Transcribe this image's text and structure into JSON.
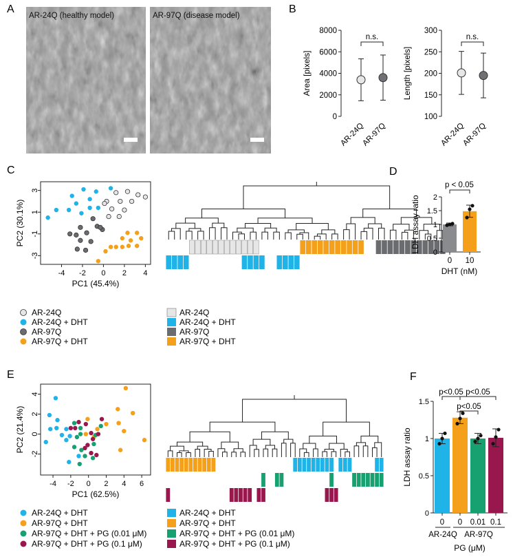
{
  "panels": {
    "A": {
      "letter": "A",
      "images": [
        {
          "label": "AR-24Q (healthy model)"
        },
        {
          "label": "AR-97Q (disease model)"
        }
      ]
    },
    "B": {
      "letter": "B",
      "chart_data": [
        {
          "type": "scatter",
          "title": "",
          "xlabel": "",
          "ylabel": "Area [pixels]",
          "categories": [
            "AR-24Q",
            "AR-97Q"
          ],
          "means": [
            3400,
            3600
          ],
          "errors": [
            1950,
            2100
          ],
          "ylim": [
            0,
            8000
          ],
          "yticks": [
            0,
            2000,
            4000,
            6000,
            8000
          ],
          "significance": "n.s."
        },
        {
          "type": "scatter",
          "title": "",
          "xlabel": "",
          "ylabel": "Length [pixels]",
          "categories": [
            "AR-24Q",
            "AR-97Q"
          ],
          "means": [
            201,
            195
          ],
          "errors": [
            50,
            52
          ],
          "ylim": [
            100,
            300
          ],
          "yticks": [
            100,
            150,
            200,
            250,
            300
          ],
          "significance": "n.s."
        }
      ]
    },
    "C": {
      "letter": "C",
      "pca": {
        "xlabel": "PC1 (45.4%)",
        "ylabel": "PC2 (30.1%)",
        "xticks": [
          -4,
          -2,
          0,
          2,
          4
        ],
        "yticks": [
          3,
          1,
          -1,
          -3
        ],
        "xlim": [
          -6,
          4.5
        ],
        "ylim": [
          -3.8,
          3.8
        ],
        "groups": [
          {
            "name": "AR-24Q",
            "color": "#e6e6e6",
            "points": [
              [
                1.2,
                2.8
              ],
              [
                2.3,
                2.9
              ],
              [
                3.3,
                2.6
              ],
              [
                4.0,
                2.4
              ],
              [
                0.3,
                2.0
              ],
              [
                1.6,
                2.0
              ],
              [
                2.7,
                2.0
              ],
              [
                0.8,
                1.3
              ],
              [
                2.0,
                1.2
              ],
              [
                0.5,
                0.6
              ],
              [
                1.5,
                0.6
              ],
              [
                0.1,
                1.8
              ]
            ]
          },
          {
            "name": "AR-24Q + DHT",
            "color": "#1fb3e8",
            "points": [
              [
                -1.9,
                3.1
              ],
              [
                -0.7,
                2.9
              ],
              [
                0.7,
                3.2
              ],
              [
                -3.0,
                2.5
              ],
              [
                -1.3,
                2.2
              ],
              [
                -2.6,
                1.8
              ],
              [
                -1.3,
                1.4
              ],
              [
                -0.5,
                1.4
              ],
              [
                -4.5,
                1.2
              ],
              [
                -3.3,
                1.2
              ],
              [
                -2.1,
                0.9
              ],
              [
                -5.3,
                0.5
              ]
            ]
          },
          {
            "name": "AR-97Q",
            "color": "#6b6c70",
            "points": [
              [
                -1.0,
                0.4
              ],
              [
                -0.6,
                -0.3
              ],
              [
                -2.2,
                -0.4
              ],
              [
                -0.1,
                -0.6
              ],
              [
                -0.3,
                -0.4
              ],
              [
                -1.6,
                -0.9
              ],
              [
                -3.2,
                -1.0
              ],
              [
                -2.6,
                -1.1
              ],
              [
                -2.2,
                -1.6
              ],
              [
                -1.2,
                -1.7
              ],
              [
                -2.5,
                -2.4
              ],
              [
                -1.7,
                -2.5
              ]
            ]
          },
          {
            "name": "AR-97Q + DHT",
            "color": "#f4a01b",
            "points": [
              [
                2.3,
                -0.9
              ],
              [
                3.2,
                -0.9
              ],
              [
                3.6,
                -1.4
              ],
              [
                1.8,
                -1.4
              ],
              [
                2.6,
                -1.6
              ],
              [
                3.2,
                -2.1
              ],
              [
                2.4,
                -2.1
              ],
              [
                1.8,
                -2.2
              ],
              [
                1.2,
                -2.2
              ],
              [
                0.7,
                -2.2
              ],
              [
                0.2,
                -2.6
              ],
              [
                -0.5,
                -3.5
              ]
            ]
          }
        ]
      },
      "legend": [
        "AR-24Q",
        "AR-24Q + DHT",
        "AR-97Q",
        "AR-97Q + DHT"
      ],
      "dendro_legend": [
        "AR-24Q",
        "AR-24Q + DHT",
        "AR-97Q",
        "AR-97Q + DHT"
      ]
    },
    "D": {
      "letter": "D",
      "chart_data": {
        "type": "bar",
        "title": "",
        "xlabel": "DHT (nM)",
        "ylabel": "LDH assay ratio",
        "categories": [
          "0",
          "10"
        ],
        "values": [
          1.0,
          1.48
        ],
        "errors": [
          0.05,
          0.22
        ],
        "colors": [
          "#8a8b8e",
          "#f4a01b"
        ],
        "points": [
          [
            0.97,
            1.0,
            1.03
          ],
          [
            1.25,
            1.55,
            1.68
          ]
        ],
        "ylim": [
          0,
          2.0
        ],
        "yticks": [
          0,
          0.5,
          1.0,
          1.5,
          2.0
        ],
        "annotation": "p < 0.05"
      }
    },
    "E": {
      "letter": "E",
      "pca": {
        "xlabel": "PC1 (62.5%)",
        "ylabel": "PC2 (21.4%)",
        "xticks": [
          -4,
          -2,
          0,
          2,
          4,
          6
        ],
        "yticks": [
          4,
          2,
          0,
          -2
        ],
        "xlim": [
          -5.4,
          7.0
        ],
        "ylim": [
          -4.1,
          5.0
        ],
        "groups": [
          {
            "name": "AR-24Q + DHT",
            "color": "#1fb3e8",
            "points": [
              [
                -3.7,
                3.6
              ],
              [
                -4.4,
                1.9
              ],
              [
                -3.5,
                1.4
              ],
              [
                -3.6,
                0.6
              ],
              [
                -4.3,
                0.5
              ],
              [
                -4.8,
                -0.8
              ],
              [
                -3.0,
                -0.1
              ],
              [
                -2.5,
                0.5
              ],
              [
                -2.5,
                -0.6
              ],
              [
                -2.1,
                -0.2
              ],
              [
                -1.1,
                -2.2
              ],
              [
                -2.2,
                -2.8
              ]
            ]
          },
          {
            "name": "AR-97Q + DHT",
            "color": "#f4a01b",
            "points": [
              [
                4.2,
                4.6
              ],
              [
                3.3,
                2.5
              ],
              [
                5.0,
                2.1
              ],
              [
                -0.1,
                1.5
              ],
              [
                2.0,
                1.0
              ],
              [
                3.4,
                1.1
              ],
              [
                1.0,
                0.5
              ],
              [
                4.0,
                0.3
              ],
              [
                -0.3,
                0.0
              ],
              [
                0.6,
                -0.3
              ],
              [
                6.3,
                -0.6
              ],
              [
                3.6,
                -1.6
              ]
            ]
          },
          {
            "name": "AR-97Q + DHT + PG (0.01 μM)",
            "color": "#18a170",
            "points": [
              [
                -1.6,
                1.1
              ],
              [
                -0.9,
                0.6
              ],
              [
                -0.9,
                0.0
              ],
              [
                -1.3,
                -0.3
              ],
              [
                1.4,
                0.8
              ],
              [
                0.8,
                -0.1
              ],
              [
                0.6,
                -1.0
              ],
              [
                -1.6,
                -1.3
              ],
              [
                -0.8,
                -1.6
              ],
              [
                -0.4,
                -2.2
              ],
              [
                0.5,
                -2.4
              ],
              [
                -1.0,
                -3.0
              ]
            ]
          },
          {
            "name": "AR-97Q + DHT + PG (0.1 μM)",
            "color": "#98174c",
            "points": [
              [
                -1.1,
                1.2
              ],
              [
                -0.3,
                1.0
              ],
              [
                1.5,
                1.5
              ],
              [
                -2.0,
                0.6
              ],
              [
                -1.5,
                0.6
              ],
              [
                0.3,
                0.1
              ],
              [
                1.1,
                0.0
              ],
              [
                0.5,
                -0.5
              ],
              [
                -0.1,
                -1.1
              ],
              [
                0.3,
                -1.9
              ],
              [
                -0.4,
                -1.4
              ],
              [
                0.9,
                -2.1
              ]
            ]
          }
        ]
      },
      "legend": [
        "AR-24Q + DHT",
        "AR-97Q + DHT",
        "AR-97Q + DHT + PG (0.01 μM)",
        "AR-97Q + DHT + PG (0.1 μM)"
      ],
      "dendro_legend": [
        "AR-24Q + DHT",
        "AR-97Q + DHT",
        "AR-97Q + DHT + PG (0.01 μM)",
        "AR-97Q + DHT + PG (0.1 μM)"
      ]
    },
    "F": {
      "letter": "F",
      "chart_data": {
        "type": "bar",
        "title": "",
        "xlabel": "PG (μM)",
        "ylabel": "LDH assay ratio",
        "categories": [
          "0",
          "0",
          "0.01",
          "0.1"
        ],
        "groups": [
          "AR-24Q",
          "AR-97Q"
        ],
        "values": [
          1.0,
          1.28,
          1.0,
          1.01
        ],
        "errors": [
          0.07,
          0.08,
          0.07,
          0.12
        ],
        "colors": [
          "#1fb3e8",
          "#f4a01b",
          "#18a170",
          "#98174c"
        ],
        "points": [
          [
            0.93,
            1.0,
            1.07
          ],
          [
            1.2,
            1.27,
            1.34
          ],
          [
            0.96,
            1.0,
            1.04
          ],
          [
            0.93,
            1.02,
            1.12
          ]
        ],
        "ylim": [
          0,
          1.5
        ],
        "yticks": [
          0.0,
          0.5,
          1.0,
          1.5
        ],
        "comparisons": [
          "p<0.05",
          "p<0.05",
          "p<0.05"
        ]
      }
    }
  }
}
